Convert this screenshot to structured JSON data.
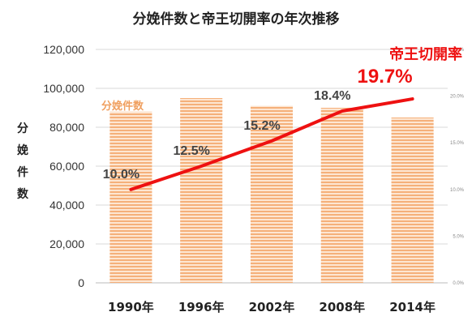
{
  "chart_data": {
    "type": "bar+line",
    "title": "分娩件数と帝王切開率の年次推移",
    "categories": [
      "1990年",
      "1996年",
      "2002年",
      "2008年",
      "2014年"
    ],
    "ylabel": "分娩件数",
    "ylim": [
      0,
      120000
    ],
    "yticks": [
      "0",
      "20,000",
      "40,000",
      "60,000",
      "80,000",
      "100,000",
      "120,000"
    ],
    "y2lim": [
      0,
      25
    ],
    "y2ticks": [
      "0.0%",
      "5.0%",
      "10.0%",
      "15.0%",
      "20.0%",
      "%"
    ],
    "bar_series": {
      "name": "分娩件数",
      "values": [
        88000,
        95000,
        91000,
        90000,
        85000
      ],
      "color": "#f5b07a"
    },
    "line_series": {
      "name": "帝王切開率",
      "values": [
        10.0,
        12.5,
        15.2,
        18.4,
        19.7
      ],
      "labels": [
        "10.0%",
        "12.5%",
        "15.2%",
        "18.4%",
        "19.7%"
      ],
      "color": "#ee1111"
    },
    "grid": true
  }
}
